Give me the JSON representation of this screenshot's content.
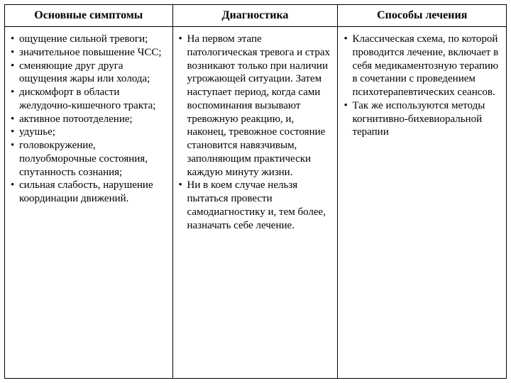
{
  "table": {
    "border_color": "#000000",
    "background_color": "#ffffff",
    "text_color": "#000000",
    "header_fontsize": 16,
    "body_fontsize": 15,
    "columns": [
      {
        "header": "Основные симптомы",
        "items": [
          "ощущение сильной тревоги;",
          "значительное повышение ЧСС;",
          "сменяющие друг друга ощущения жары или холода;",
          "дискомфорт в области желудочно-кишечного тракта;",
          "активное потоотделение;",
          "удушье;",
          "головокружение, полуобморочные состояния, спутанность сознания;",
          "сильная слабость, нарушение координации движений."
        ]
      },
      {
        "header": "Диагностика",
        "items": [
          "На первом этапе патологическая тревога и страх возникают только при наличии угрожающей ситуации. Затем наступает период, когда сами воспоминания вызывают тревожную реакцию, и, наконец, тревожное состояние становится навязчивым, заполняющим практически каждую минуту жизни.",
          "Ни в коем случае нельзя пытаться провести самодиагностику и, тем более, назначать себе лечение."
        ]
      },
      {
        "header": "Способы лечения",
        "items": [
          "Классическая схема, по которой проводится лечение, включает в себя медикаментозную терапию в сочетании с проведением психотерапевтических сеансов.",
          "Так же используются методы когнитивно-бихевиоральной терапии"
        ]
      }
    ]
  }
}
